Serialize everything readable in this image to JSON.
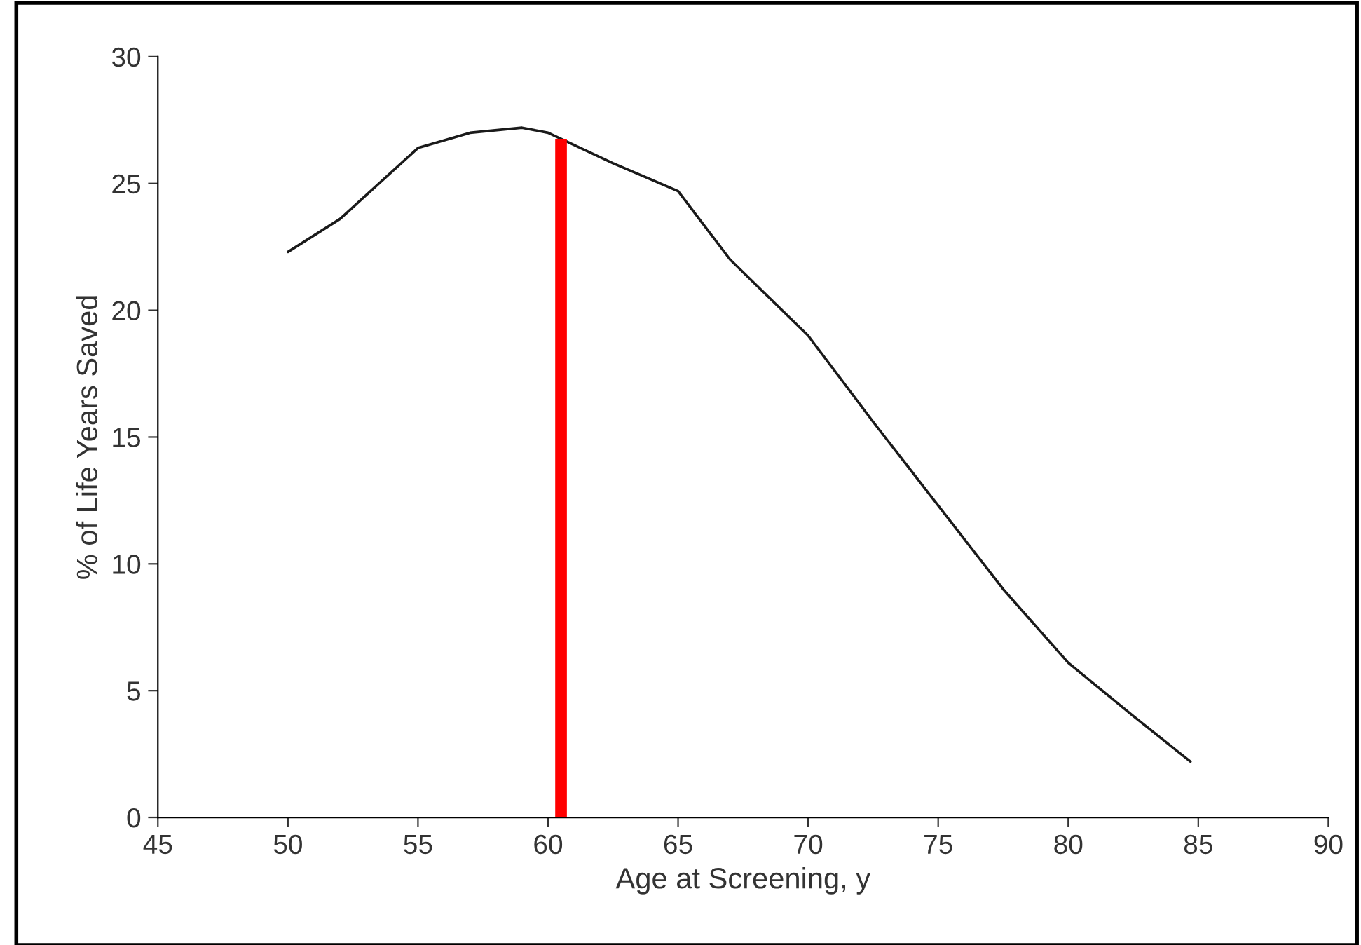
{
  "chart_data": {
    "type": "line",
    "xlabel": "Age at Screening, y",
    "ylabel": "% of Life Years Saved",
    "series": [
      {
        "color": "#1a1a1a",
        "x": [
          50,
          52,
          55,
          57,
          59,
          60,
          62.5,
          65,
          67,
          70,
          72.5,
          75,
          77.5,
          80,
          82.5,
          84.7
        ],
        "values": [
          22.3,
          23.6,
          26.4,
          27.0,
          27.2,
          27.0,
          25.8,
          24.7,
          22.0,
          19.0,
          15.6,
          12.3,
          9.0,
          6.1,
          4.0,
          2.2
        ]
      }
    ],
    "xlim": [
      45,
      90
    ],
    "xticks": [
      45,
      50,
      55,
      60,
      65,
      70,
      75,
      80,
      85,
      90
    ],
    "ylim": [
      0,
      30
    ],
    "yticks": [
      0,
      5,
      10,
      15,
      20,
      25,
      30
    ],
    "ref_lines": [
      {
        "axis": "x",
        "value": 60.5,
        "color": "#ff0000"
      }
    ],
    "grid": false,
    "legend": false,
    "marker": "none",
    "line_style": "solid"
  }
}
